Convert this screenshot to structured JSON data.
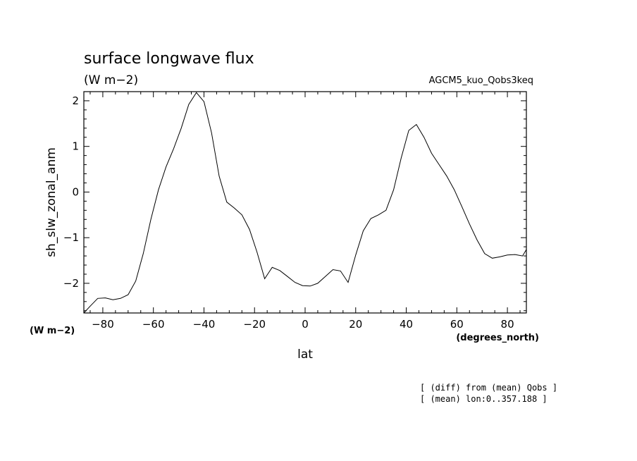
{
  "chart_data": {
    "type": "line",
    "title": "surface longwave flux",
    "units": "(W m−2)",
    "run_label": "AGCM5_kuo_Qobs3keq",
    "ylabel": "sh_slw_zonal_anm",
    "y_units": "(W m−2)",
    "xlabel": "lat",
    "x_units": "(degrees_north)",
    "footnotes": [
      "[ (diff) from (mean) Qobs ]",
      "[ (mean) lon:0..357.188 ]"
    ],
    "xlim": [
      -87.5,
      87.5
    ],
    "ylim": [
      -2.65,
      2.2
    ],
    "x_ticks": [
      -80,
      -60,
      -40,
      -20,
      0,
      20,
      40,
      60,
      80
    ],
    "y_ticks": [
      -2,
      -1,
      0,
      1,
      2
    ],
    "grid": false,
    "series": [
      {
        "x": [
          -88,
          -85,
          -82,
          -79,
          -76,
          -73,
          -70,
          -67,
          -64,
          -61,
          -58,
          -55,
          -52,
          -49,
          -46,
          -43,
          -40,
          -37,
          -34,
          -31,
          -28,
          -25,
          -22,
          -19,
          -16,
          -13,
          -10,
          -7,
          -4,
          -1,
          2,
          5,
          8,
          11,
          14,
          17,
          20,
          23,
          26,
          29,
          32,
          35,
          38,
          41,
          44,
          47,
          50,
          53,
          56,
          59,
          62,
          65,
          68,
          71,
          74,
          77,
          80,
          83,
          86,
          88
        ],
        "y": [
          -2.65,
          -2.5,
          -2.33,
          -2.32,
          -2.36,
          -2.33,
          -2.25,
          -1.95,
          -1.35,
          -0.6,
          0.05,
          0.55,
          0.95,
          1.4,
          1.92,
          2.18,
          1.98,
          1.3,
          0.35,
          -0.22,
          -0.35,
          -0.5,
          -0.82,
          -1.32,
          -1.9,
          -1.65,
          -1.72,
          -1.85,
          -1.98,
          -2.05,
          -2.06,
          -2.0,
          -1.85,
          -1.7,
          -1.73,
          -1.98,
          -1.38,
          -0.85,
          -0.58,
          -0.5,
          -0.4,
          0.05,
          0.75,
          1.35,
          1.48,
          1.2,
          0.85,
          0.6,
          0.35,
          0.05,
          -0.32,
          -0.7,
          -1.05,
          -1.35,
          -1.45,
          -1.42,
          -1.38,
          -1.37,
          -1.4,
          -1.26
        ]
      }
    ]
  }
}
